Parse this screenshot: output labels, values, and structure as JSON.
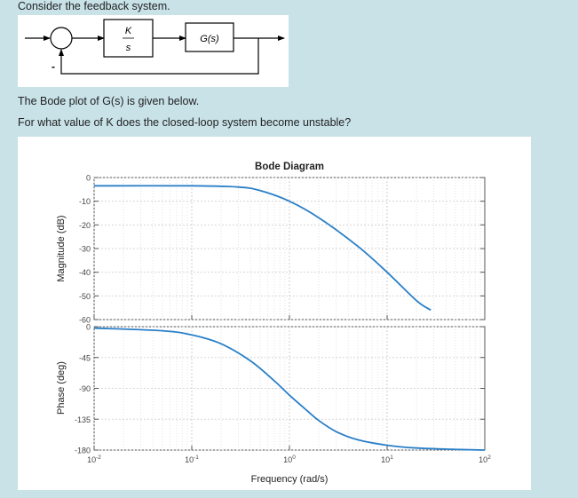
{
  "question": {
    "intro": "Consider the feedback system.",
    "bode_intro": "The Bode plot of G(s) is given below.",
    "prompt": "For what value of K does the closed-loop system become unstable?"
  },
  "block_diagram": {
    "controller_numerator": "K",
    "controller_denominator": "s",
    "plant_label": "G(s)",
    "feedback_sign": "-"
  },
  "chart_data": {
    "type": "line",
    "title": "Bode Diagram",
    "xlabel": "Frequency (rad/s)",
    "x_scale": "log",
    "xlim": [
      0.01,
      100
    ],
    "x_ticks": [
      "10-2",
      "10-1",
      "100",
      "101",
      "102"
    ],
    "grid": true,
    "line_color": "#2a7fc8",
    "magnitude": {
      "ylabel": "Magnitude (dB)",
      "ylim": [
        -60,
        0
      ],
      "y_ticks": [
        "0",
        "-10",
        "-20",
        "-30",
        "-40",
        "-50",
        "-60"
      ],
      "x": [
        0.01,
        0.1,
        0.3,
        0.5,
        1,
        2,
        5,
        10,
        20,
        28
      ],
      "values": [
        -3.5,
        -3.5,
        -4,
        -5.5,
        -10,
        -17,
        -29,
        -40,
        -52,
        -56
      ]
    },
    "phase": {
      "ylabel": "Phase (deg)",
      "ylim": [
        -180,
        0
      ],
      "y_ticks": [
        "0",
        "-45",
        "-90",
        "-135",
        "-180"
      ],
      "x": [
        0.01,
        0.05,
        0.1,
        0.2,
        0.4,
        0.7,
        1,
        1.5,
        2,
        3,
        5,
        10,
        20,
        50,
        100
      ],
      "values": [
        -2,
        -6,
        -12,
        -25,
        -50,
        -79,
        -100,
        -122,
        -137,
        -153,
        -165,
        -173,
        -177,
        -179,
        -180
      ]
    }
  }
}
